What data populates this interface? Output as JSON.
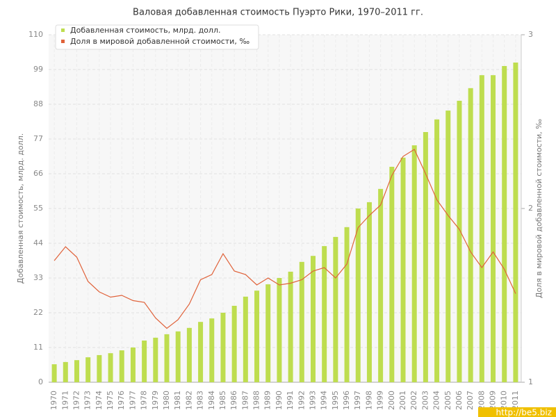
{
  "watermark": "http://be5.biz",
  "chart_data": {
    "type": "bar-line",
    "title": "Валовая добавленная стоимость Пуэрто Рики, 1970–2011 гг.",
    "y_label": "Добавленная стоимость, млрд. долл.",
    "y2_label": "Доля в мировой добавленной стоимости, ‰",
    "categories": [
      "1970",
      "1971",
      "1972",
      "1973",
      "1974",
      "1975",
      "1976",
      "1977",
      "1978",
      "1979",
      "1980",
      "1981",
      "1982",
      "1983",
      "1984",
      "1985",
      "1986",
      "1987",
      "1988",
      "1989",
      "1990",
      "1991",
      "1992",
      "1993",
      "1994",
      "1995",
      "1996",
      "1997",
      "1998",
      "1999",
      "2000",
      "2001",
      "2002",
      "2003",
      "2004",
      "2005",
      "2006",
      "2007",
      "2008",
      "2009",
      "2010",
      "2011"
    ],
    "series": [
      {
        "name": "Добавленная стоимость, млрд. долл.",
        "color": "#bedd4f",
        "type": "bar",
        "values": [
          5.7,
          6.4,
          7.0,
          7.9,
          8.6,
          9.2,
          10.1,
          11.0,
          13.2,
          14.1,
          15.2,
          16.1,
          17.2,
          19.1,
          20.2,
          22.0,
          24.2,
          27.1,
          29.0,
          31.0,
          33.0,
          35.0,
          38.1,
          40.0,
          43.1,
          46.0,
          49.1,
          55.0,
          57.0,
          61.2,
          68.2,
          71.1,
          75.0,
          79.2,
          83.2,
          86.0,
          89.1,
          93.1,
          97.2,
          97.2,
          100.1,
          101.2
        ]
      },
      {
        "name": "Доля в мировой добавленной стоимости, ‰",
        "color": "#e0623a",
        "type": "line",
        "axis": "y2",
        "values": [
          1.7,
          1.78,
          1.72,
          1.58,
          1.52,
          1.49,
          1.5,
          1.47,
          1.46,
          1.37,
          1.31,
          1.36,
          1.45,
          1.59,
          1.62,
          1.74,
          1.64,
          1.62,
          1.56,
          1.6,
          1.56,
          1.57,
          1.59,
          1.64,
          1.66,
          1.6,
          1.68,
          1.89,
          1.96,
          2.02,
          2.19,
          2.3,
          2.34,
          2.2,
          2.05,
          1.96,
          1.88,
          1.75,
          1.66,
          1.75,
          1.65,
          1.51
        ]
      }
    ],
    "ylim": [
      0,
      110
    ],
    "yticks": [
      0,
      11,
      22,
      33,
      44,
      55,
      66,
      77,
      88,
      99,
      110
    ],
    "y2lim": [
      1,
      3
    ],
    "y2ticks": [
      1,
      2,
      3
    ],
    "grid": true
  }
}
